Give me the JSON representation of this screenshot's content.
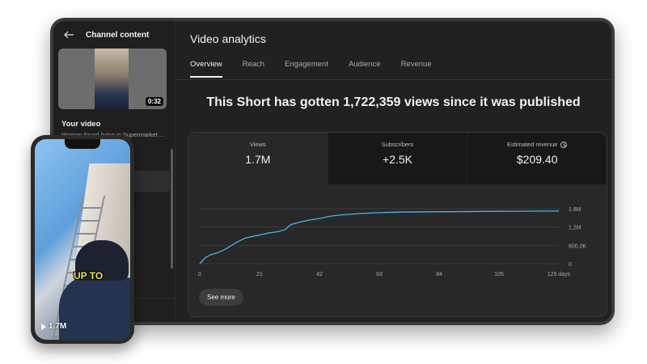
{
  "sidebar": {
    "title": "Channel content",
    "thumbnail_duration": "0:32",
    "your_video_label": "Your video",
    "video_title": "Woman found living in Supermarket ..."
  },
  "main": {
    "title": "Video analytics",
    "tabs": [
      {
        "label": "Overview",
        "active": true
      },
      {
        "label": "Reach",
        "active": false
      },
      {
        "label": "Engagement",
        "active": false
      },
      {
        "label": "Audience",
        "active": false
      },
      {
        "label": "Revenue",
        "active": false
      }
    ],
    "headline": "This Short has gotten 1,722,359 views since it was published",
    "metrics": [
      {
        "label": "Views",
        "value": "1.7M"
      },
      {
        "label": "Subscribers",
        "value": "+2.5K"
      },
      {
        "label": "Estimated revenue",
        "value": "$209.40"
      }
    ],
    "see_more": "See more"
  },
  "phone": {
    "caption": "UP TO",
    "play_count": "1.7M"
  },
  "colors": {
    "line": "#4fb3e8",
    "background": "#212121",
    "caption": "#f5e84a"
  },
  "chart_data": {
    "type": "line",
    "x_tick_labels": [
      "0",
      "21",
      "42",
      "63",
      "84",
      "105",
      "126 days"
    ],
    "y_tick_labels": [
      "0",
      "600.0K",
      "1.2M",
      "1.8M"
    ],
    "xlim": [
      0,
      126
    ],
    "ylim": [
      0,
      1800000
    ],
    "x": [
      0,
      2,
      4,
      6,
      8,
      10,
      12,
      14,
      16,
      18,
      20,
      22,
      24,
      26,
      28,
      30,
      32,
      35,
      38,
      42,
      46,
      50,
      56,
      63,
      70,
      84,
      105,
      126
    ],
    "y": [
      0,
      200000,
      300000,
      350000,
      430000,
      530000,
      650000,
      750000,
      840000,
      880000,
      920000,
      960000,
      1000000,
      1030000,
      1060000,
      1120000,
      1280000,
      1360000,
      1420000,
      1480000,
      1560000,
      1600000,
      1640000,
      1670000,
      1690000,
      1700000,
      1715000,
      1722359
    ],
    "grid": true
  }
}
